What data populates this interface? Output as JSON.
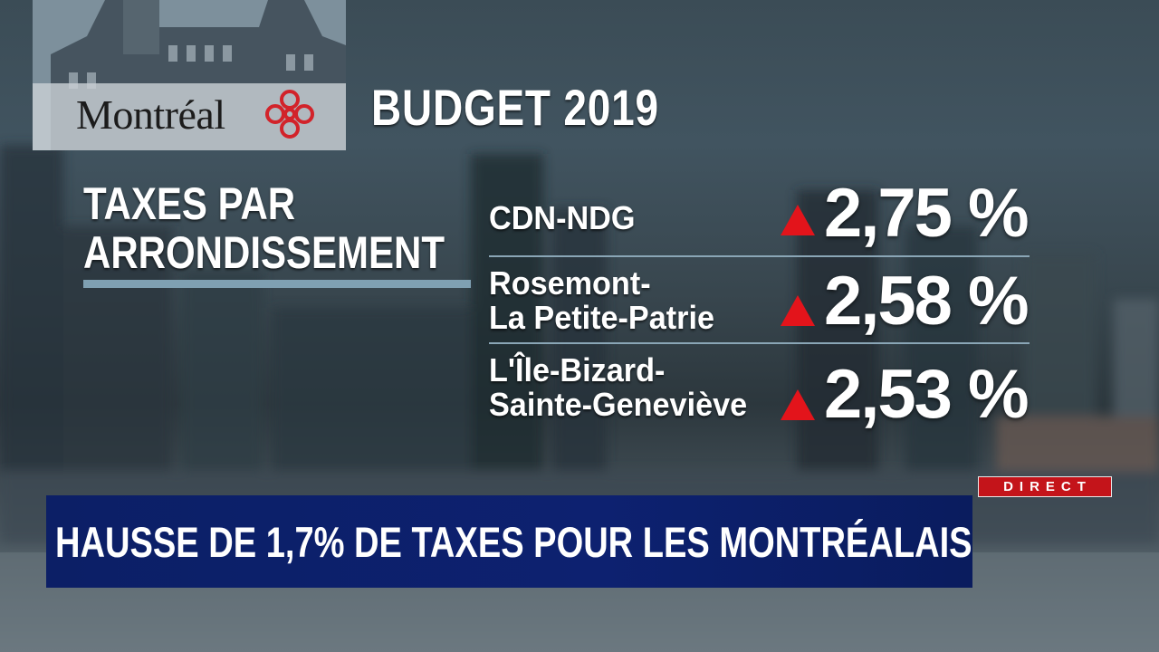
{
  "background": {
    "description_colors": {
      "sky": "#3b4c56",
      "water": "#6b7880"
    }
  },
  "logo": {
    "wordmark": "Montréal",
    "icon": "montreal-rosette-icon",
    "color": "#d2232a"
  },
  "title": "BUDGET 2019",
  "section": {
    "heading_line1": "TAXES PAR",
    "heading_line2": "ARRONDISSEMENT"
  },
  "rows": [
    {
      "name_line1": "CDN-NDG",
      "name_line2": "",
      "change": "2,75 %",
      "direction": "up-arrow-icon"
    },
    {
      "name_line1": "Rosemont-",
      "name_line2": "La Petite-Patrie",
      "change": "2,58 %",
      "direction": "up-arrow-icon"
    },
    {
      "name_line1": "L'Île-Bizard-",
      "name_line2": "Sainte-Geneviève",
      "change": "2,53 %",
      "direction": "up-arrow-icon"
    }
  ],
  "colors": {
    "arrow": "#e3141b",
    "ticker": "#0c1f66",
    "live": "#c4141a",
    "accent_line": "#7fa0b2"
  },
  "live_badge": "DIRECT",
  "ticker": {
    "headline": "HAUSSE DE 1,7% DE TAXES POUR LES MONTRÉALAIS"
  }
}
